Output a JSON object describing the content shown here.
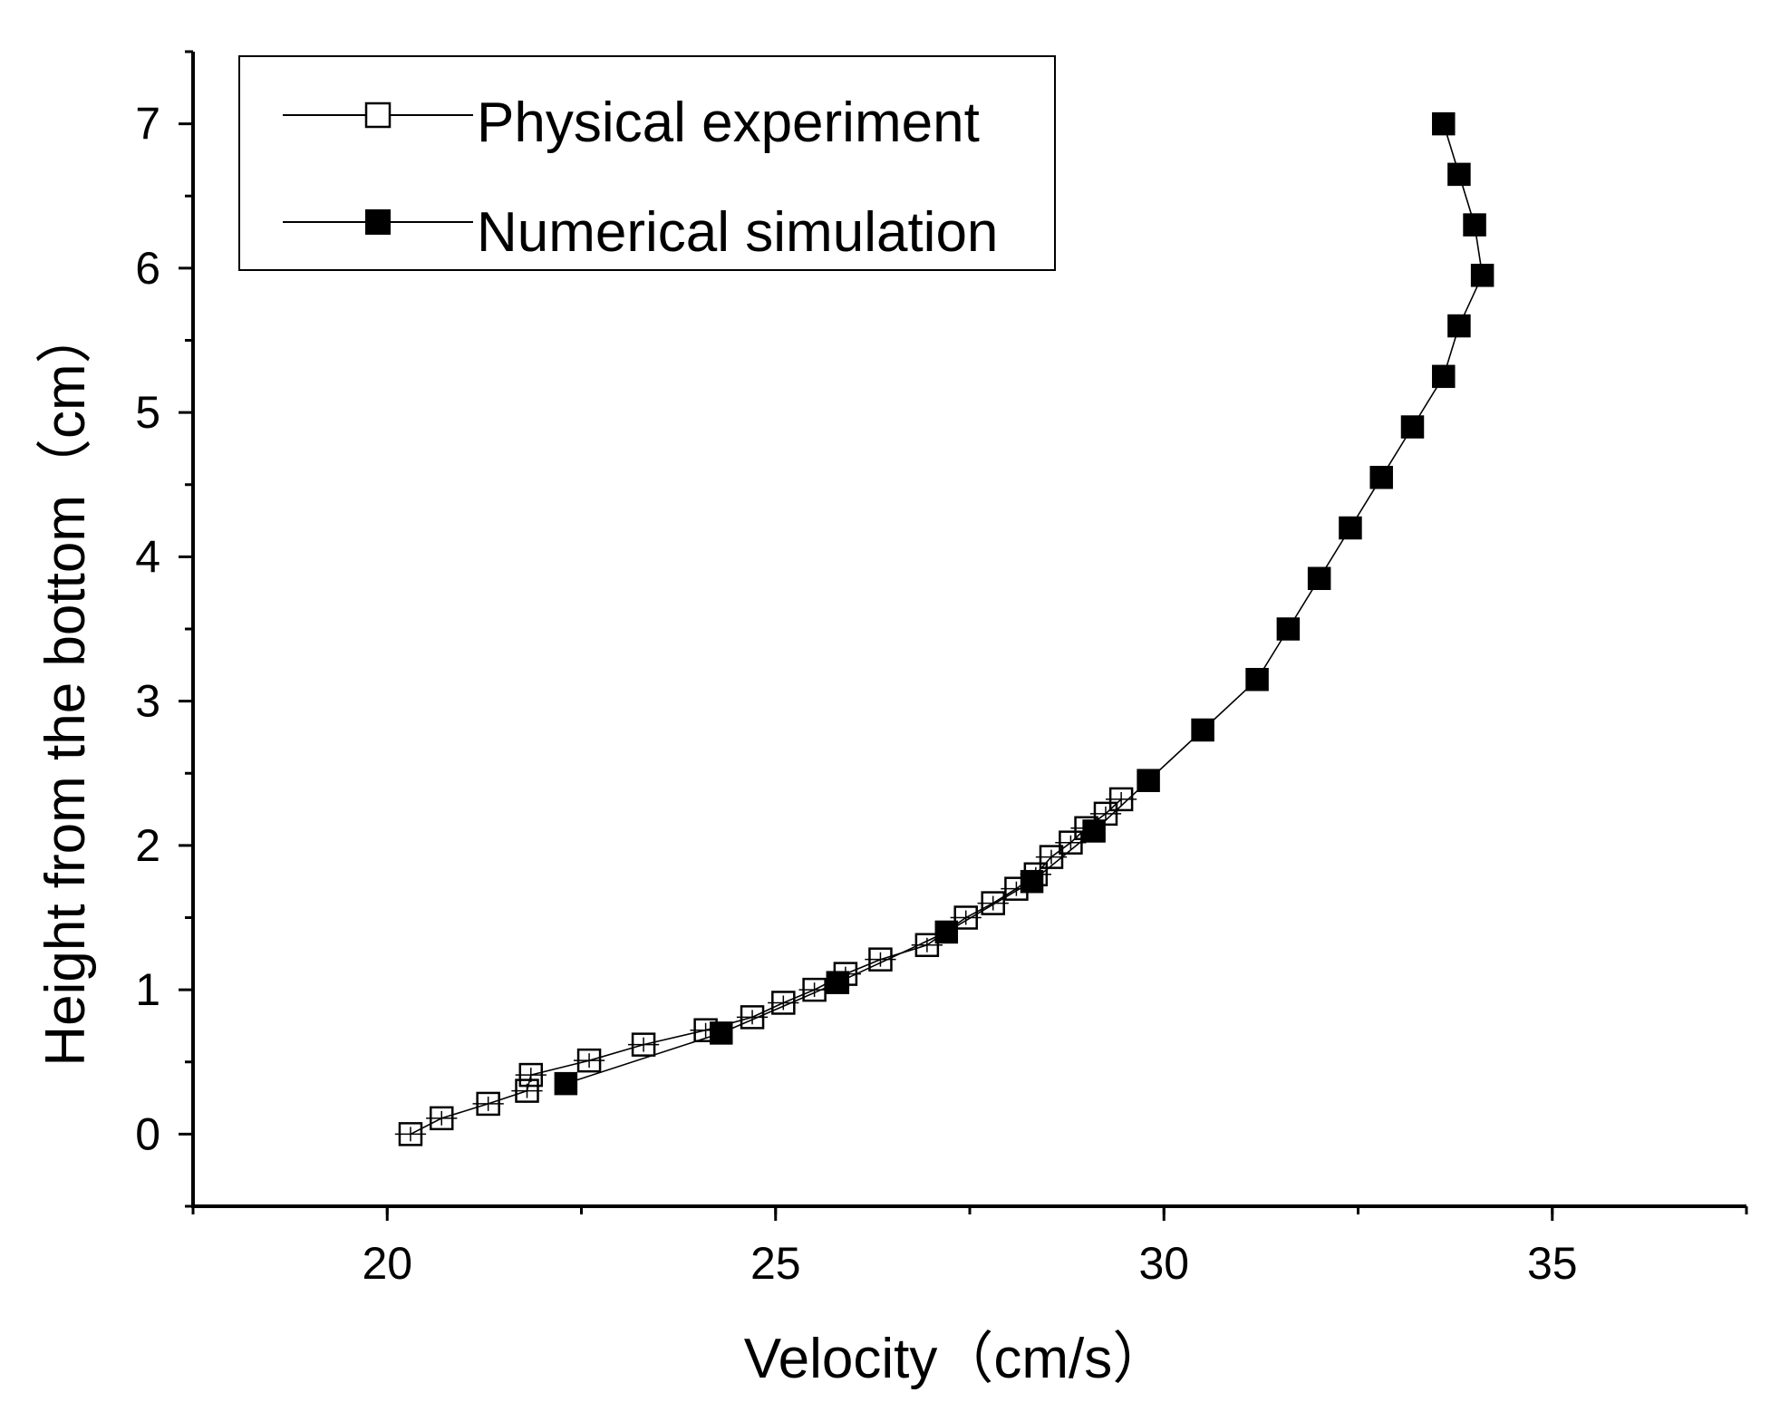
{
  "chart_data": {
    "type": "line",
    "title": "",
    "xlabel": "Velocity（cm/s）",
    "ylabel": "Height from the bottom（cm）",
    "xlim": [
      17.5,
      37.5
    ],
    "ylim": [
      -0.5,
      7.5
    ],
    "xticks": [
      20,
      25,
      30,
      35
    ],
    "yticks": [
      0,
      1,
      2,
      3,
      4,
      5,
      6,
      7
    ],
    "xtick_labels": [
      "20",
      "25",
      "30",
      "35"
    ],
    "ytick_labels": [
      "0",
      "1",
      "2",
      "3",
      "4",
      "5",
      "6",
      "7"
    ],
    "grid": false,
    "legend_position": "top-left",
    "series": [
      {
        "name": "Physical experiment",
        "marker": "open-square",
        "has_error_bars": true,
        "x": [
          20.3,
          20.7,
          21.3,
          21.8,
          21.85,
          22.6,
          23.3,
          24.1,
          24.7,
          25.1,
          25.5,
          25.9,
          26.35,
          26.95,
          27.45,
          27.8,
          28.1,
          28.35,
          28.55,
          28.8,
          29.0,
          29.25,
          29.45
        ],
        "y": [
          0.0,
          0.11,
          0.21,
          0.3,
          0.41,
          0.51,
          0.62,
          0.72,
          0.81,
          0.91,
          1.0,
          1.11,
          1.21,
          1.31,
          1.5,
          1.6,
          1.7,
          1.8,
          1.92,
          2.02,
          2.12,
          2.22,
          2.32
        ],
        "xerr": [
          0.2,
          0.2,
          0.2,
          0.2,
          0.2,
          0.2,
          0.2,
          0.2,
          0.2,
          0.2,
          0.2,
          0.2,
          0.2,
          0.2,
          0.2,
          0.2,
          0.2,
          0.2,
          0.2,
          0.2,
          0.2,
          0.2,
          0.2
        ],
        "yerr": [
          0.05,
          0.05,
          0.05,
          0.05,
          0.05,
          0.05,
          0.05,
          0.05,
          0.05,
          0.05,
          0.05,
          0.05,
          0.05,
          0.05,
          0.05,
          0.05,
          0.05,
          0.05,
          0.05,
          0.05,
          0.05,
          0.05,
          0.05
        ]
      },
      {
        "name": "Numerical simulation",
        "marker": "filled-square",
        "has_error_bars": false,
        "x": [
          22.3,
          24.3,
          25.8,
          27.2,
          28.3,
          29.1,
          29.8,
          30.5,
          31.2,
          31.6,
          32.0,
          32.4,
          32.8,
          33.2,
          33.6,
          33.8,
          34.1,
          34.0,
          33.8,
          33.6
        ],
        "y": [
          0.35,
          0.7,
          1.05,
          1.4,
          1.75,
          2.1,
          2.45,
          2.8,
          3.15,
          3.5,
          3.85,
          4.2,
          4.55,
          4.9,
          5.25,
          5.6,
          5.95,
          6.3,
          6.65,
          7.0
        ]
      }
    ]
  }
}
